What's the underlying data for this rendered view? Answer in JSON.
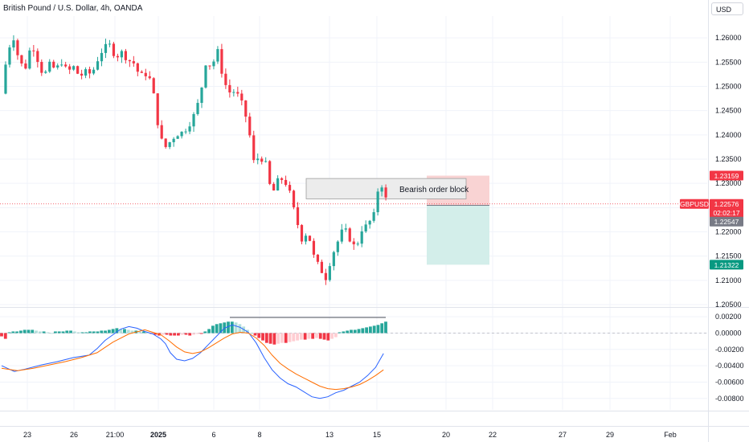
{
  "header": {
    "title": "British Pound / U.S. Dollar, 4h, OANDA",
    "currency_button": "USD"
  },
  "colors": {
    "up": "#26a69a",
    "down": "#f23645",
    "hist_up_strong": "#26a69a",
    "hist_up_weak": "#b2dfdb",
    "hist_down_strong": "#f23645",
    "hist_down_weak": "#ffcdd2",
    "macd_line": "#2962ff",
    "signal_line": "#ff6d00",
    "grid": "#f0f3fa",
    "stop_zone": "#f9d3d3",
    "target_zone": "#d3eeea",
    "order_block": "#ececec"
  },
  "chart_data": [
    {
      "type": "candlestick",
      "title": "British Pound / U.S. Dollar, 4h, OANDA",
      "symbol": "GBPUSD",
      "x_tick_labels": [
        "23",
        "26",
        "21:00",
        "2025",
        "6",
        "8",
        "13",
        "15",
        "20",
        "22",
        "27",
        "29",
        "Feb"
      ],
      "y_tick_labels": [
        "1.26000",
        "1.25500",
        "1.25000",
        "1.24500",
        "1.24000",
        "1.23500",
        "1.23000",
        "1.22500",
        "1.22000",
        "1.21500",
        "1.21000",
        "1.20500"
      ],
      "ylim": [
        1.2045,
        1.2645
      ],
      "grid": true,
      "path": [
        [
          0,
          1.2485
        ],
        [
          3,
          1.2575
        ],
        [
          6,
          1.26
        ],
        [
          9,
          1.2548
        ],
        [
          12,
          1.254
        ],
        [
          15,
          1.259
        ],
        [
          18,
          1.2555
        ],
        [
          21,
          1.252
        ],
        [
          24,
          1.2545
        ],
        [
          27,
          1.2535
        ],
        [
          30,
          1.255
        ],
        [
          33,
          1.253
        ],
        [
          36,
          1.254
        ],
        [
          39,
          1.252
        ],
        [
          42,
          1.253
        ],
        [
          45,
          1.2525
        ],
        [
          48,
          1.2555
        ],
        [
          51,
          1.258
        ],
        [
          54,
          1.2585
        ],
        [
          57,
          1.256
        ],
        [
          60,
          1.257
        ],
        [
          63,
          1.2555
        ],
        [
          66,
          1.2548
        ],
        [
          69,
          1.2522
        ],
        [
          72,
          1.2525
        ],
        [
          75,
          1.251
        ],
        [
          78,
          1.2425
        ],
        [
          81,
          1.237
        ],
        [
          84,
          1.2385
        ],
        [
          87,
          1.24
        ],
        [
          90,
          1.2405
        ],
        [
          93,
          1.2415
        ],
        [
          96,
          1.244
        ],
        [
          99,
          1.2475
        ],
        [
          102,
          1.2548
        ],
        [
          105,
          1.2542
        ],
        [
          108,
          1.2572
        ],
        [
          111,
          1.251
        ],
        [
          114,
          1.2488
        ],
        [
          117,
          1.249
        ],
        [
          120,
          1.2465
        ],
        [
          123,
          1.2425
        ],
        [
          126,
          1.2345
        ],
        [
          129,
          1.2355
        ],
        [
          132,
          1.234
        ],
        [
          135,
          1.2275
        ],
        [
          138,
          1.2305
        ],
        [
          141,
          1.231
        ],
        [
          144,
          1.228
        ],
        [
          147,
          1.223
        ],
        [
          150,
          1.2185
        ],
        [
          153,
          1.22
        ],
        [
          156,
          1.215
        ],
        [
          159,
          1.2125
        ],
        [
          162,
          1.2105
        ],
        [
          165,
          1.215
        ],
        [
          168,
          1.218
        ],
        [
          171,
          1.221
        ],
        [
          174,
          1.2185
        ],
        [
          177,
          1.2165
        ],
        [
          180,
          1.2205
        ],
        [
          183,
          1.2215
        ],
        [
          186,
          1.2235
        ],
        [
          189,
          1.231
        ],
        [
          192,
          1.2268
        ]
      ],
      "last_price": 1.22576,
      "price_labels": [
        {
          "text": "1.23159",
          "value": 1.23159,
          "color": "#f23645"
        },
        {
          "text": "1.22576",
          "value": 1.22576,
          "color": "#f23645"
        },
        {
          "text": "02:02:17",
          "value": 1.22576,
          "color": "#f23645"
        },
        {
          "text": "1.22547",
          "value": 1.22547,
          "color": "#787b86"
        },
        {
          "text": "1.21322",
          "value": 1.21322,
          "color": "#089981"
        }
      ],
      "order_block": {
        "label": "Bearish order block",
        "top": 1.231,
        "bottom": 1.2268,
        "start": 150,
        "end": 190
      },
      "position": {
        "entry": 1.22547,
        "stop": 1.23159,
        "target": 1.21322
      }
    },
    {
      "type": "macd",
      "y_tick_labels": [
        "0.00200",
        "0.00000",
        "-0.00200",
        "-0.00400",
        "-0.00600",
        "-0.00800"
      ],
      "ylim": [
        -0.0094,
        0.003
      ],
      "histogram": [
        -0.0004,
        -0.0007,
        0.0001,
        0.0002,
        0.0002,
        0.0003,
        0.0004,
        0.0004,
        0.0004,
        0.0003,
        0.0002,
        0.0002,
        0.0001,
        0.0,
        0.0002,
        0.0002,
        0.0002,
        0.0003,
        0.0003,
        0.0002,
        0.0001,
        0.0001,
        0.0001,
        0.0002,
        0.0002,
        0.0002,
        0.0003,
        0.0003,
        0.0004,
        0.0005,
        0.0006,
        0.0005,
        0.0005,
        0.0004,
        0.0003,
        0.0003,
        0.0002,
        0.0002,
        0.0001,
        -0.0001,
        -0.0002,
        -0.0003,
        -0.0002,
        -0.0002,
        -0.0003,
        -0.0003,
        -0.0003,
        -0.0002,
        -0.0002,
        -0.0003,
        -0.0002,
        -0.0001,
        -0.0001,
        0.0002,
        0.0005,
        0.0009,
        0.0011,
        0.0012,
        0.0013,
        0.0014,
        0.0014,
        0.0013,
        0.0011,
        0.0008,
        0.0004,
        0.0,
        -0.0003,
        -0.0006,
        -0.0009,
        -0.0012,
        -0.0013,
        -0.0014,
        -0.0013,
        -0.0012,
        -0.0012,
        -0.0011,
        -0.001,
        -0.0009,
        -0.0008,
        -0.0008,
        -0.0007,
        -0.0007,
        -0.0006,
        -0.0007,
        -0.0008,
        -0.0009,
        -0.0007,
        -0.0005,
        0.0001,
        0.0002,
        0.0003,
        0.0004,
        0.0004,
        0.0005,
        0.0006,
        0.0007,
        0.0008,
        0.0009,
        0.001,
        0.0012,
        0.0014
      ],
      "macd_path": [
        [
          0,
          -0.004
        ],
        [
          8,
          -0.0047
        ],
        [
          15,
          -0.0044
        ],
        [
          25,
          -0.0039
        ],
        [
          35,
          -0.0035
        ],
        [
          45,
          -0.003
        ],
        [
          55,
          -0.0027
        ],
        [
          60,
          -0.0019
        ],
        [
          65,
          -0.0009
        ],
        [
          70,
          -0.0002
        ],
        [
          75,
          0.0005
        ],
        [
          80,
          0.0008
        ],
        [
          85,
          0.0006
        ],
        [
          90,
          0.0002
        ],
        [
          95,
          -0.0001
        ],
        [
          100,
          -0.0007
        ],
        [
          103,
          -0.0013
        ],
        [
          106,
          -0.0024
        ],
        [
          110,
          -0.0032
        ],
        [
          115,
          -0.0034
        ],
        [
          120,
          -0.0031
        ],
        [
          125,
          -0.0024
        ],
        [
          130,
          -0.0014
        ],
        [
          135,
          -0.0004
        ],
        [
          140,
          0.0006
        ],
        [
          145,
          0.001
        ],
        [
          150,
          0.0007
        ],
        [
          155,
          0.0001
        ],
        [
          160,
          -0.0012
        ],
        [
          165,
          -0.003
        ],
        [
          170,
          -0.0045
        ],
        [
          175,
          -0.0055
        ],
        [
          180,
          -0.0062
        ],
        [
          185,
          -0.0066
        ],
        [
          190,
          -0.0072
        ],
        [
          195,
          -0.0078
        ],
        [
          200,
          -0.008
        ],
        [
          205,
          -0.0078
        ],
        [
          210,
          -0.0073
        ],
        [
          215,
          -0.007
        ],
        [
          220,
          -0.0065
        ],
        [
          225,
          -0.006
        ],
        [
          230,
          -0.0052
        ],
        [
          235,
          -0.0042
        ],
        [
          240,
          -0.0025
        ]
      ],
      "signal_path": [
        [
          0,
          -0.0043
        ],
        [
          10,
          -0.0046
        ],
        [
          20,
          -0.0043
        ],
        [
          30,
          -0.0039
        ],
        [
          40,
          -0.0035
        ],
        [
          50,
          -0.003
        ],
        [
          60,
          -0.0024
        ],
        [
          70,
          -0.0011
        ],
        [
          80,
          -0.0001
        ],
        [
          90,
          0.0004
        ],
        [
          95,
          0.0001
        ],
        [
          100,
          -0.0002
        ],
        [
          105,
          -0.0009
        ],
        [
          110,
          -0.0017
        ],
        [
          115,
          -0.0023
        ],
        [
          120,
          -0.0025
        ],
        [
          125,
          -0.0023
        ],
        [
          130,
          -0.0018
        ],
        [
          135,
          -0.0012
        ],
        [
          140,
          -0.0006
        ],
        [
          145,
          -0.0001
        ],
        [
          150,
          0.0001
        ],
        [
          155,
          0.0
        ],
        [
          160,
          -0.0006
        ],
        [
          165,
          -0.0015
        ],
        [
          170,
          -0.0027
        ],
        [
          175,
          -0.0037
        ],
        [
          180,
          -0.0044
        ],
        [
          185,
          -0.005
        ],
        [
          190,
          -0.0055
        ],
        [
          195,
          -0.006
        ],
        [
          200,
          -0.0065
        ],
        [
          205,
          -0.0068
        ],
        [
          210,
          -0.0069
        ],
        [
          215,
          -0.0068
        ],
        [
          220,
          -0.0066
        ],
        [
          225,
          -0.0063
        ],
        [
          230,
          -0.0058
        ],
        [
          235,
          -0.0052
        ],
        [
          240,
          -0.0045
        ]
      ]
    }
  ]
}
